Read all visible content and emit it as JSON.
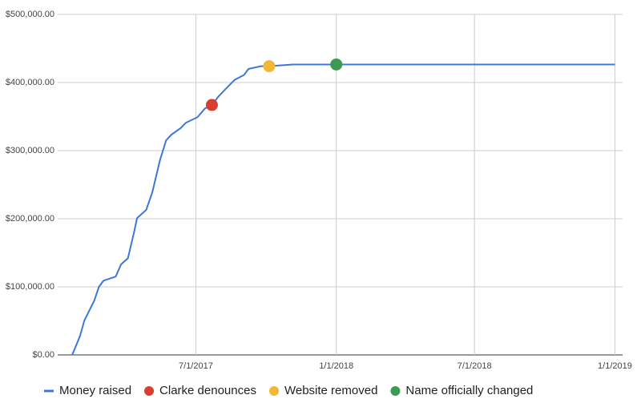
{
  "chart_data": {
    "type": "line",
    "x": [
      "2017-01-20",
      "2017-01-30",
      "2017-02-05",
      "2017-02-18",
      "2017-02-24",
      "2017-03-02",
      "2017-03-18",
      "2017-03-25",
      "2017-04-03",
      "2017-04-11",
      "2017-04-15",
      "2017-04-27",
      "2017-05-05",
      "2017-05-15",
      "2017-05-23",
      "2017-05-30",
      "2017-06-11",
      "2017-06-18",
      "2017-07-03",
      "2017-07-13",
      "2017-07-22",
      "2017-07-31",
      "2017-08-12",
      "2017-08-21",
      "2017-09-02",
      "2017-09-08",
      "2017-09-24",
      "2017-10-05",
      "2017-11-05",
      "2018-01-01",
      "2019-01-01"
    ],
    "series": [
      {
        "name": "Money raised",
        "color": "#3c78d8",
        "mode": "line",
        "values": [
          0,
          27000,
          50600,
          80000,
          100000,
          109000,
          115000,
          133000,
          142000,
          180000,
          201000,
          213000,
          239000,
          286000,
          315000,
          323500,
          333000,
          341000,
          349000,
          362000,
          367000,
          380000,
          394000,
          404000,
          411000,
          420000,
          424000,
          424000,
          426500,
          426500,
          426500
        ]
      },
      {
        "name": "Clarke denounces",
        "color": "#d93f30",
        "mode": "marker",
        "x": [
          "2017-07-22"
        ],
        "values": [
          367000
        ]
      },
      {
        "name": "Website removed",
        "color": "#f2b735",
        "mode": "marker",
        "x": [
          "2017-10-05"
        ],
        "values": [
          424000
        ]
      },
      {
        "name": "Name officially changed",
        "color": "#3d9a52",
        "mode": "marker",
        "x": [
          "2018-01-01"
        ],
        "values": [
          426500
        ]
      }
    ],
    "xlim": [
      "2017-01-01",
      "2019-01-11"
    ],
    "xticks": [
      {
        "value": "2017-07-01",
        "label": "7/1/2017"
      },
      {
        "value": "2018-01-01",
        "label": "1/1/2018"
      },
      {
        "value": "2018-07-01",
        "label": "7/1/2018"
      },
      {
        "value": "2019-01-01",
        "label": "1/1/2019"
      }
    ],
    "ylim": [
      0,
      500000
    ],
    "yticks": [
      {
        "value": 0,
        "label": "$0.00"
      },
      {
        "value": 100000,
        "label": "$100,000.00"
      },
      {
        "value": 200000,
        "label": "$200,000.00"
      },
      {
        "value": 300000,
        "label": "$300,000.00"
      },
      {
        "value": 400000,
        "label": "$400,000.00"
      },
      {
        "value": 500000,
        "label": "$500,000.00"
      }
    ],
    "grid": true,
    "legend": "bottom"
  }
}
